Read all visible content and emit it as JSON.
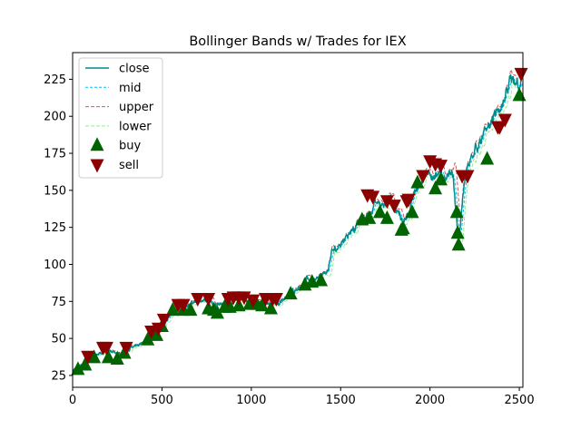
{
  "chart_data": {
    "type": "line",
    "title": "Bollinger Bands w/ Trades for IEX",
    "xlabel": "",
    "ylabel": "",
    "xlim": [
      0,
      2520
    ],
    "ylim": [
      17,
      243
    ],
    "x_ticks": [
      0,
      500,
      1000,
      1500,
      2000,
      2500
    ],
    "y_ticks": [
      25,
      50,
      75,
      100,
      125,
      150,
      175,
      200,
      225
    ],
    "grid": false,
    "legend_position": "top-left",
    "anchors": [
      [
        0,
        28
      ],
      [
        50,
        32
      ],
      [
        100,
        36
      ],
      [
        150,
        40
      ],
      [
        200,
        42
      ],
      [
        250,
        39
      ],
      [
        300,
        41
      ],
      [
        350,
        45
      ],
      [
        400,
        49
      ],
      [
        450,
        53
      ],
      [
        500,
        59
      ],
      [
        550,
        66
      ],
      [
        600,
        71
      ],
      [
        650,
        72
      ],
      [
        700,
        76
      ],
      [
        750,
        77
      ],
      [
        800,
        74
      ],
      [
        850,
        73
      ],
      [
        900,
        75
      ],
      [
        950,
        77
      ],
      [
        1000,
        74
      ],
      [
        1050,
        75
      ],
      [
        1100,
        73
      ],
      [
        1150,
        74
      ],
      [
        1200,
        79
      ],
      [
        1250,
        84
      ],
      [
        1300,
        89
      ],
      [
        1350,
        90
      ],
      [
        1400,
        92
      ],
      [
        1420,
        93
      ],
      [
        1450,
        107
      ],
      [
        1500,
        114
      ],
      [
        1550,
        123
      ],
      [
        1600,
        127
      ],
      [
        1650,
        134
      ],
      [
        1700,
        141
      ],
      [
        1750,
        140
      ],
      [
        1780,
        150
      ],
      [
        1800,
        135
      ],
      [
        1830,
        133
      ],
      [
        1850,
        127
      ],
      [
        1880,
        133
      ],
      [
        1900,
        146
      ],
      [
        1950,
        156
      ],
      [
        2000,
        163
      ],
      [
        2050,
        160
      ],
      [
        2100,
        160
      ],
      [
        2130,
        158
      ],
      [
        2150,
        130
      ],
      [
        2160,
        115
      ],
      [
        2180,
        140
      ],
      [
        2200,
        160
      ],
      [
        2250,
        178
      ],
      [
        2300,
        186
      ],
      [
        2350,
        198
      ],
      [
        2400,
        205
      ],
      [
        2450,
        220
      ],
      [
        2500,
        222
      ],
      [
        2520,
        226
      ]
    ],
    "series": [
      {
        "name": "close",
        "color": "#008b8b",
        "style": "solid"
      },
      {
        "name": "mid",
        "color": "#00bfff",
        "style": "dashed"
      },
      {
        "name": "upper",
        "color": "#cd5c5c",
        "style": "dashed"
      },
      {
        "name": "lower",
        "color": "#90ee90",
        "style": "dashed"
      }
    ],
    "markers": {
      "buy": {
        "name": "buy",
        "color": "#006400",
        "symbol": "triangle-up",
        "points": [
          [
            30,
            29
          ],
          [
            70,
            32
          ],
          [
            120,
            37
          ],
          [
            200,
            37
          ],
          [
            250,
            36
          ],
          [
            290,
            40
          ],
          [
            420,
            49
          ],
          [
            470,
            52
          ],
          [
            500,
            58
          ],
          [
            560,
            69
          ],
          [
            620,
            69
          ],
          [
            660,
            69
          ],
          [
            760,
            70
          ],
          [
            790,
            69
          ],
          [
            810,
            67
          ],
          [
            850,
            71
          ],
          [
            880,
            71
          ],
          [
            930,
            72
          ],
          [
            990,
            73
          ],
          [
            1030,
            73
          ],
          [
            1060,
            72
          ],
          [
            1110,
            70
          ],
          [
            1220,
            80
          ],
          [
            1300,
            86
          ],
          [
            1340,
            88
          ],
          [
            1390,
            89
          ],
          [
            1620,
            130
          ],
          [
            1660,
            131
          ],
          [
            1720,
            135
          ],
          [
            1760,
            131
          ],
          [
            1840,
            123
          ],
          [
            1850,
            124
          ],
          [
            1900,
            135
          ],
          [
            1930,
            155
          ],
          [
            2030,
            151
          ],
          [
            2060,
            157
          ],
          [
            2150,
            135
          ],
          [
            2155,
            121
          ],
          [
            2160,
            113
          ],
          [
            2320,
            171
          ],
          [
            2500,
            214
          ]
        ]
      },
      "sell": {
        "name": "sell",
        "color": "#8b0000",
        "symbol": "triangle-down",
        "points": [
          [
            85,
            38
          ],
          [
            170,
            44
          ],
          [
            190,
            44
          ],
          [
            300,
            44
          ],
          [
            440,
            55
          ],
          [
            480,
            57
          ],
          [
            510,
            63
          ],
          [
            590,
            73
          ],
          [
            620,
            73
          ],
          [
            700,
            77
          ],
          [
            760,
            77
          ],
          [
            870,
            77
          ],
          [
            900,
            78
          ],
          [
            930,
            78
          ],
          [
            960,
            78
          ],
          [
            1010,
            76
          ],
          [
            1080,
            77
          ],
          [
            1120,
            77
          ],
          [
            1140,
            77
          ],
          [
            1650,
            147
          ],
          [
            1680,
            146
          ],
          [
            1760,
            143
          ],
          [
            1800,
            140
          ],
          [
            1870,
            143
          ],
          [
            1880,
            144
          ],
          [
            1960,
            160
          ],
          [
            2000,
            170
          ],
          [
            2030,
            168
          ],
          [
            2060,
            167
          ],
          [
            2180,
            160
          ],
          [
            2210,
            160
          ],
          [
            2380,
            193
          ],
          [
            2390,
            193
          ],
          [
            2420,
            198
          ],
          [
            2510,
            229
          ]
        ]
      }
    }
  }
}
